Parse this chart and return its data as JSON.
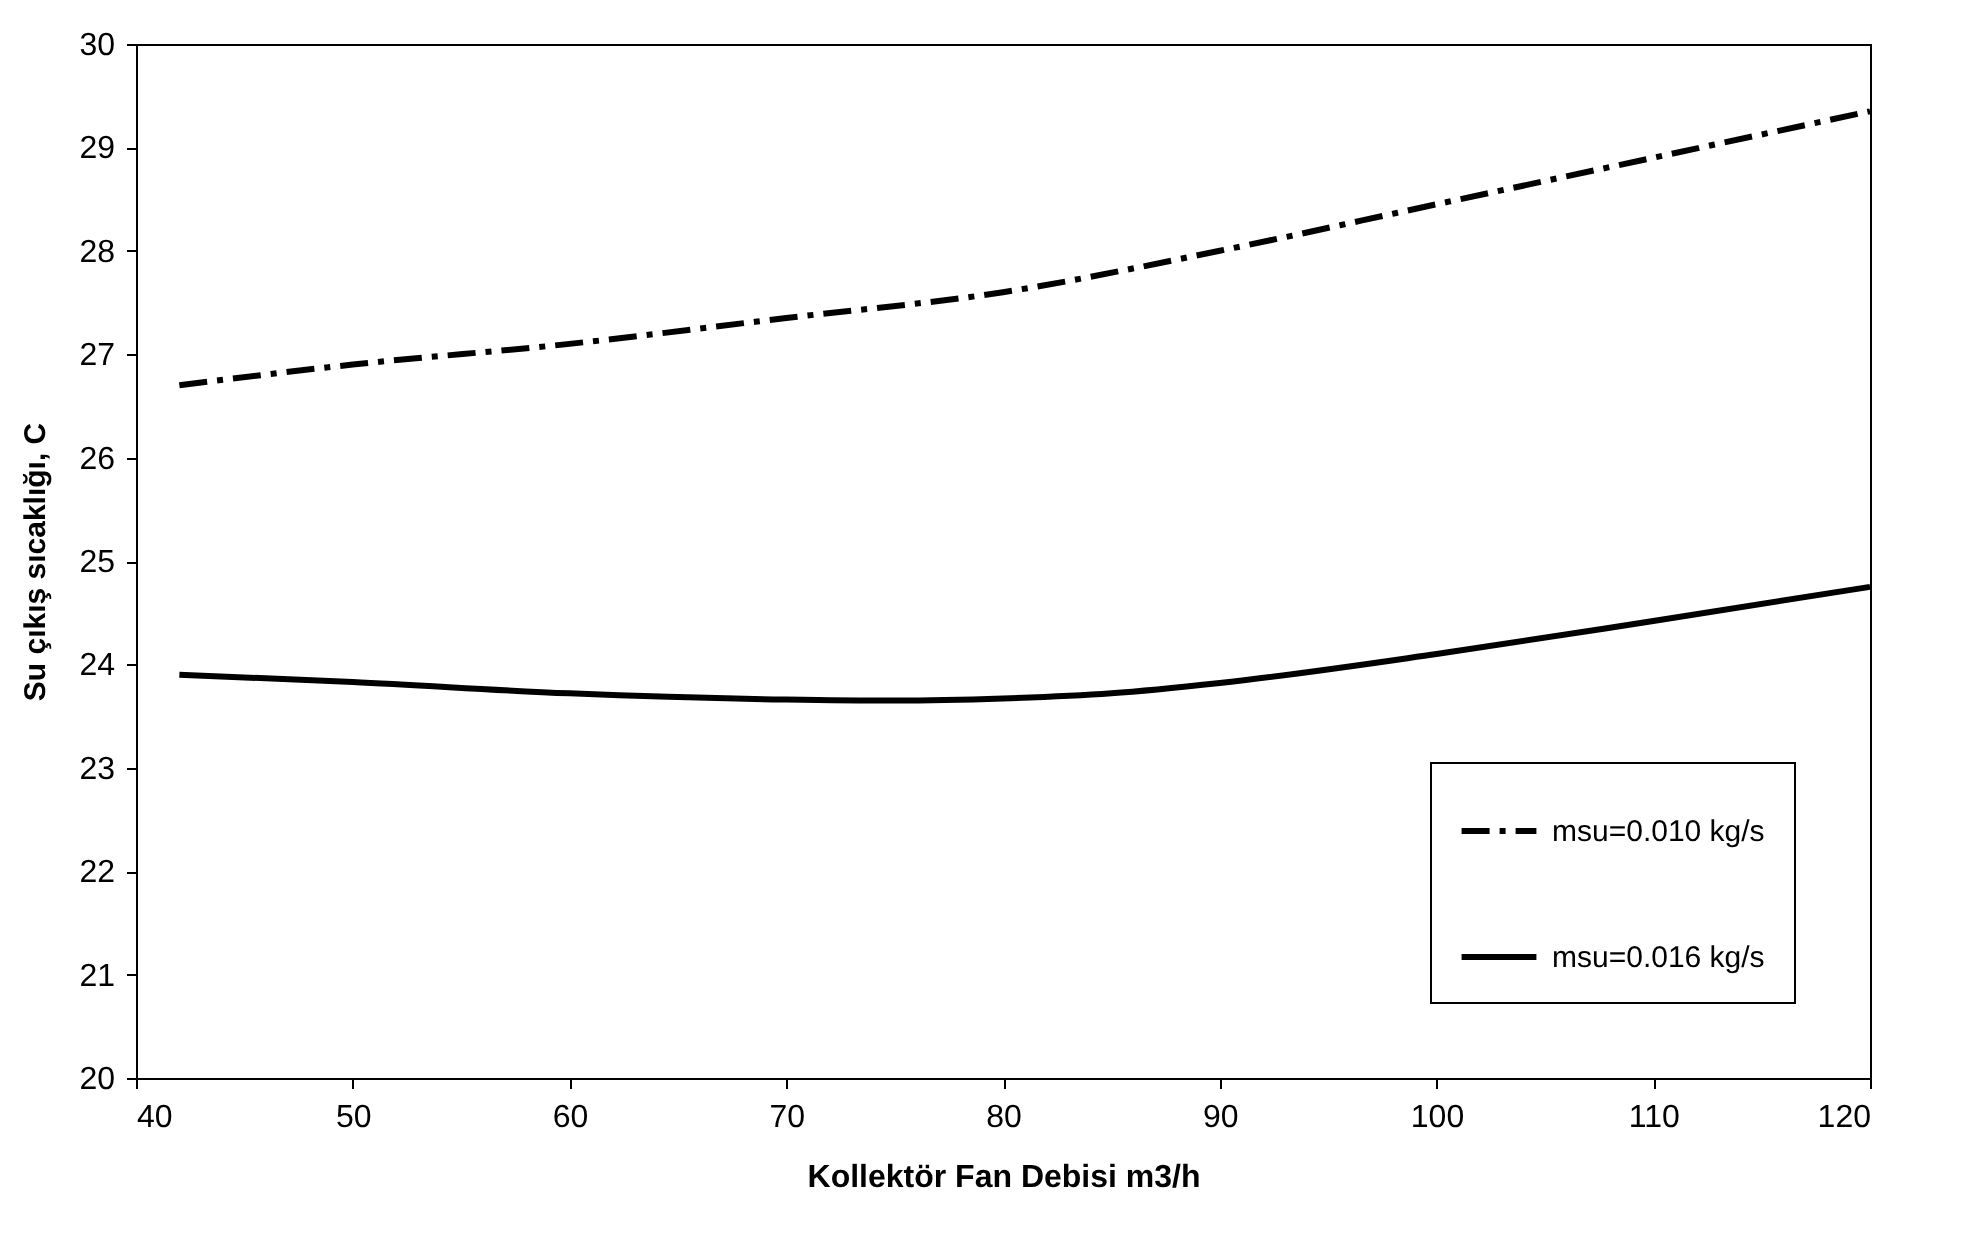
{
  "chart_data": {
    "type": "line",
    "xlabel": "Kollektör Fan Debisi m3/h",
    "ylabel": "Su çıkış sıcaklığı, C",
    "xlim": [
      40,
      120
    ],
    "xticks": [
      40,
      50,
      60,
      70,
      80,
      90,
      100,
      110,
      120
    ],
    "ylim": [
      20,
      30
    ],
    "yticks": [
      20,
      21,
      22,
      23,
      24,
      25,
      26,
      27,
      28,
      29,
      30
    ],
    "grid": false,
    "legend": "bottom right",
    "marker": "none",
    "series": [
      {
        "name": "msu=0.010 kg/s",
        "color": "#000000",
        "line_style": "dashed",
        "x": [
          42,
          50,
          60,
          70,
          80,
          90,
          100,
          110,
          120
        ],
        "values": [
          26.7,
          26.9,
          27.1,
          27.35,
          27.6,
          28.0,
          28.45,
          28.9,
          29.35
        ]
      },
      {
        "name": "msu=0.016 kg/s",
        "color": "#000000",
        "line_style": "solid",
        "x": [
          42,
          50,
          60,
          70,
          75,
          80,
          85,
          90,
          100,
          110,
          120
        ],
        "values": [
          23.9,
          23.83,
          23.72,
          23.66,
          23.65,
          23.67,
          23.72,
          23.82,
          24.1,
          24.42,
          24.75
        ]
      }
    ]
  }
}
